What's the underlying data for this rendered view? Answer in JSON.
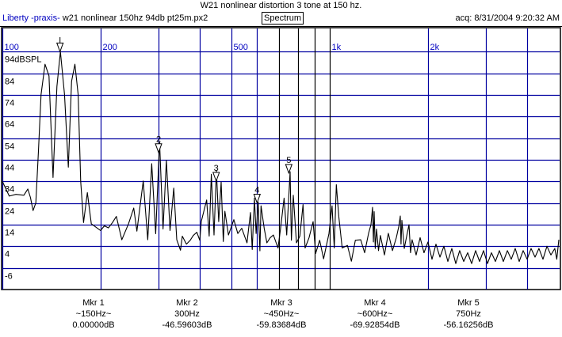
{
  "header": {
    "title": "W21 nonlinear distortion 3 tone at 150 hz.",
    "brand": "Liberty -praxis-",
    "filename": "w21 nonlinear 150hz 94db pt25m.px2",
    "view_label": "Spectrum",
    "acquired": "acq: 8/31/2004 9:20:32 AM"
  },
  "colors": {
    "grid_blue": "#0000a0",
    "grid_black": "#000000",
    "trace": "#000000",
    "label_blue": "#0000c0"
  },
  "chart_data": {
    "type": "line",
    "title": "W21 nonlinear distortion 3 tone at 150 hz.",
    "xscale": "log",
    "xlim": [
      100,
      5040
    ],
    "ylim": [
      -16,
      104
    ],
    "ylabel": "94dBSPL",
    "reference_db": 94,
    "x_gridlines": [
      {
        "f": 100,
        "label": "100",
        "color": "blue"
      },
      {
        "f": 200,
        "label": "200",
        "color": "blue"
      },
      {
        "f": 300,
        "label": "",
        "color": "blue"
      },
      {
        "f": 400,
        "label": "",
        "color": "blue"
      },
      {
        "f": 500,
        "label": "500",
        "color": "blue"
      },
      {
        "f": 600,
        "label": "",
        "color": "blue"
      },
      {
        "f": 700,
        "label": "",
        "color": "black"
      },
      {
        "f": 800,
        "label": "",
        "color": "black"
      },
      {
        "f": 900,
        "label": "",
        "color": "black"
      },
      {
        "f": 1000,
        "label": "1k",
        "color": "black"
      },
      {
        "f": 2000,
        "label": "2k",
        "color": "blue"
      },
      {
        "f": 3000,
        "label": "",
        "color": "blue"
      },
      {
        "f": 4000,
        "label": "",
        "color": "blue"
      }
    ],
    "y_ticks": [
      {
        "v": 94,
        "label": "94dBSPL"
      },
      {
        "v": 84,
        "label": "84"
      },
      {
        "v": 74,
        "label": "74"
      },
      {
        "v": 64,
        "label": "64"
      },
      {
        "v": 54,
        "label": "54"
      },
      {
        "v": 44,
        "label": "44"
      },
      {
        "v": 34,
        "label": "34"
      },
      {
        "v": 24,
        "label": "24"
      },
      {
        "v": 14,
        "label": "14"
      },
      {
        "v": 4,
        "label": "4"
      },
      {
        "v": -6,
        "label": "-6"
      }
    ],
    "series": [
      {
        "name": "spectrum",
        "points": [
          [
            100,
            34
          ],
          [
            105,
            27.2
          ],
          [
            110,
            28
          ],
          [
            116.3,
            27.6
          ],
          [
            119.6,
            30.5
          ],
          [
            121.8,
            26.6
          ],
          [
            124.1,
            20.5
          ],
          [
            126.5,
            24.1
          ],
          [
            128.8,
            47.3
          ],
          [
            131.3,
            74.2
          ],
          [
            135,
            88.2
          ],
          [
            138.8,
            82.8
          ],
          [
            142.8,
            35.8
          ],
          [
            146.8,
            77.9
          ],
          [
            150.4,
            94
          ],
          [
            154.8,
            74.2
          ],
          [
            159,
            40.6
          ],
          [
            162.7,
            80.3
          ],
          [
            166.6,
            88.2
          ],
          [
            170.4,
            74.2
          ],
          [
            173.5,
            34
          ],
          [
            177,
            15
          ],
          [
            181.8,
            28.8
          ],
          [
            186.9,
            14.4
          ],
          [
            199.5,
            11.3
          ],
          [
            205,
            13.5
          ],
          [
            210.9,
            12.5
          ],
          [
            217,
            15
          ],
          [
            223,
            17.8
          ],
          [
            231.7,
            7
          ],
          [
            242.8,
            14.4
          ],
          [
            252,
            21.7
          ],
          [
            257.6,
            11
          ],
          [
            269.4,
            34.2
          ],
          [
            278,
            7
          ],
          [
            285.9,
            42.2
          ],
          [
            294,
            9.8
          ],
          [
            302.2,
            52.2
          ],
          [
            309.6,
            12
          ],
          [
            317,
            43.7
          ],
          [
            325.3,
            11.3
          ],
          [
            333.8,
            30.9
          ],
          [
            341,
            7
          ],
          [
            350,
            2.2
          ],
          [
            354.6,
            8.7
          ],
          [
            365,
            5
          ],
          [
            375,
            6.8
          ],
          [
            383,
            9
          ],
          [
            392.6,
            10.5
          ],
          [
            401,
            6.8
          ],
          [
            405.4,
            15.6
          ],
          [
            420.8,
            25.4
          ],
          [
            428.5,
            8.7
          ],
          [
            435,
            37.3
          ],
          [
            443.2,
            9.2
          ],
          [
            450.6,
            39
          ],
          [
            458,
            15.4
          ],
          [
            466,
            33.7
          ],
          [
            473,
            6.2
          ],
          [
            478.4,
            20.2
          ],
          [
            490.6,
            9.2
          ],
          [
            509.4,
            16.3
          ],
          [
            523.8,
            9.9
          ],
          [
            538.8,
            12.3
          ],
          [
            559,
            5.6
          ],
          [
            572.8,
            19.6
          ],
          [
            580,
            2.5
          ],
          [
            589,
            26.3
          ],
          [
            596,
            9.9
          ],
          [
            604.6,
            24.5
          ],
          [
            612,
            1.9
          ],
          [
            617,
            22.7
          ],
          [
            631,
            12.3
          ],
          [
            643,
            5.6
          ],
          [
            658,
            8
          ],
          [
            673,
            9.2
          ],
          [
            695,
            3.2
          ],
          [
            708,
            12.3
          ],
          [
            725.5,
            26.3
          ],
          [
            739,
            9.2
          ],
          [
            757,
            38.5
          ],
          [
            764,
            6.8
          ],
          [
            774,
            27.6
          ],
          [
            791.5,
            5.6
          ],
          [
            811,
            8.7
          ],
          [
            829,
            23.3
          ],
          [
            841,
            3.2
          ],
          [
            865,
            8
          ],
          [
            890,
            15.4
          ],
          [
            906,
            0.7
          ],
          [
            932,
            6.8
          ],
          [
            958,
            -1.8
          ],
          [
            995,
            9.9
          ],
          [
            1017,
            22.7
          ],
          [
            1033,
            3.2
          ],
          [
            1048,
            32.5
          ],
          [
            1066,
            17.8
          ],
          [
            1092,
            3.2
          ],
          [
            1133,
            4.4
          ],
          [
            1165,
            -2.9
          ],
          [
            1198,
            6.8
          ],
          [
            1244,
            7
          ],
          [
            1279,
            1
          ],
          [
            1315,
            10
          ],
          [
            1337,
            14
          ],
          [
            1352,
            22
          ],
          [
            1360,
            6
          ],
          [
            1367,
            20
          ],
          [
            1378,
            3
          ],
          [
            1390,
            12
          ],
          [
            1410,
            2
          ],
          [
            1429,
            9
          ],
          [
            1470,
            0
          ],
          [
            1511,
            10
          ],
          [
            1555,
            2
          ],
          [
            1598,
            8
          ],
          [
            1625,
            13
          ],
          [
            1643,
            18
          ],
          [
            1652,
            5
          ],
          [
            1662,
            16
          ],
          [
            1690,
            3
          ],
          [
            1720,
            9
          ],
          [
            1747,
            14
          ],
          [
            1766,
            1
          ],
          [
            1786,
            7
          ],
          [
            1837,
            0
          ],
          [
            1889,
            8
          ],
          [
            1942,
            1
          ],
          [
            1997,
            6
          ],
          [
            2054,
            -2
          ],
          [
            2112,
            5
          ],
          [
            2172,
            -1
          ],
          [
            2233,
            4
          ],
          [
            2297,
            -3
          ],
          [
            2362,
            3
          ],
          [
            2428,
            -4
          ],
          [
            2496,
            2
          ],
          [
            2567,
            -3
          ],
          [
            2640,
            1
          ],
          [
            2715,
            -4
          ],
          [
            2792,
            2
          ],
          [
            2871,
            -3
          ],
          [
            2951,
            2
          ],
          [
            3035,
            -4
          ],
          [
            3121,
            1
          ],
          [
            3209,
            -3
          ],
          [
            3299,
            2
          ],
          [
            3393,
            -3
          ],
          [
            3490,
            2
          ],
          [
            3588,
            -2
          ],
          [
            3688,
            3
          ],
          [
            3794,
            -3
          ],
          [
            3901,
            2
          ],
          [
            4011,
            -2
          ],
          [
            4124,
            3
          ],
          [
            4240,
            -1
          ],
          [
            4359,
            3
          ],
          [
            4484,
            -2
          ],
          [
            4611,
            4
          ],
          [
            4740,
            0
          ],
          [
            4873,
            3
          ],
          [
            4940,
            -2
          ],
          [
            5013,
            7
          ]
        ]
      }
    ],
    "markers": [
      {
        "id": "1",
        "label": "",
        "f": 150,
        "title": "Mkr 1",
        "freq_text": "~150Hz~",
        "value_text": "0.00000dB",
        "rel_db": 0
      },
      {
        "id": "2",
        "label": "2",
        "f": 300,
        "title": "Mkr 2",
        "freq_text": "300Hz",
        "value_text": "-46.59603dB",
        "rel_db": -46.59603
      },
      {
        "id": "3",
        "label": "3",
        "f": 450,
        "title": "Mkr 3",
        "freq_text": "~450Hz~",
        "value_text": "-59.83684dB",
        "rel_db": -59.83684
      },
      {
        "id": "4",
        "label": "4",
        "f": 600,
        "title": "Mkr 4",
        "freq_text": "~600Hz~",
        "value_text": "-69.92854dB",
        "rel_db": -69.92854
      },
      {
        "id": "5",
        "label": "5",
        "f": 750,
        "title": "Mkr 5",
        "freq_text": "750Hz",
        "value_text": "-56.16256dB",
        "rel_db": -56.16256
      }
    ]
  }
}
